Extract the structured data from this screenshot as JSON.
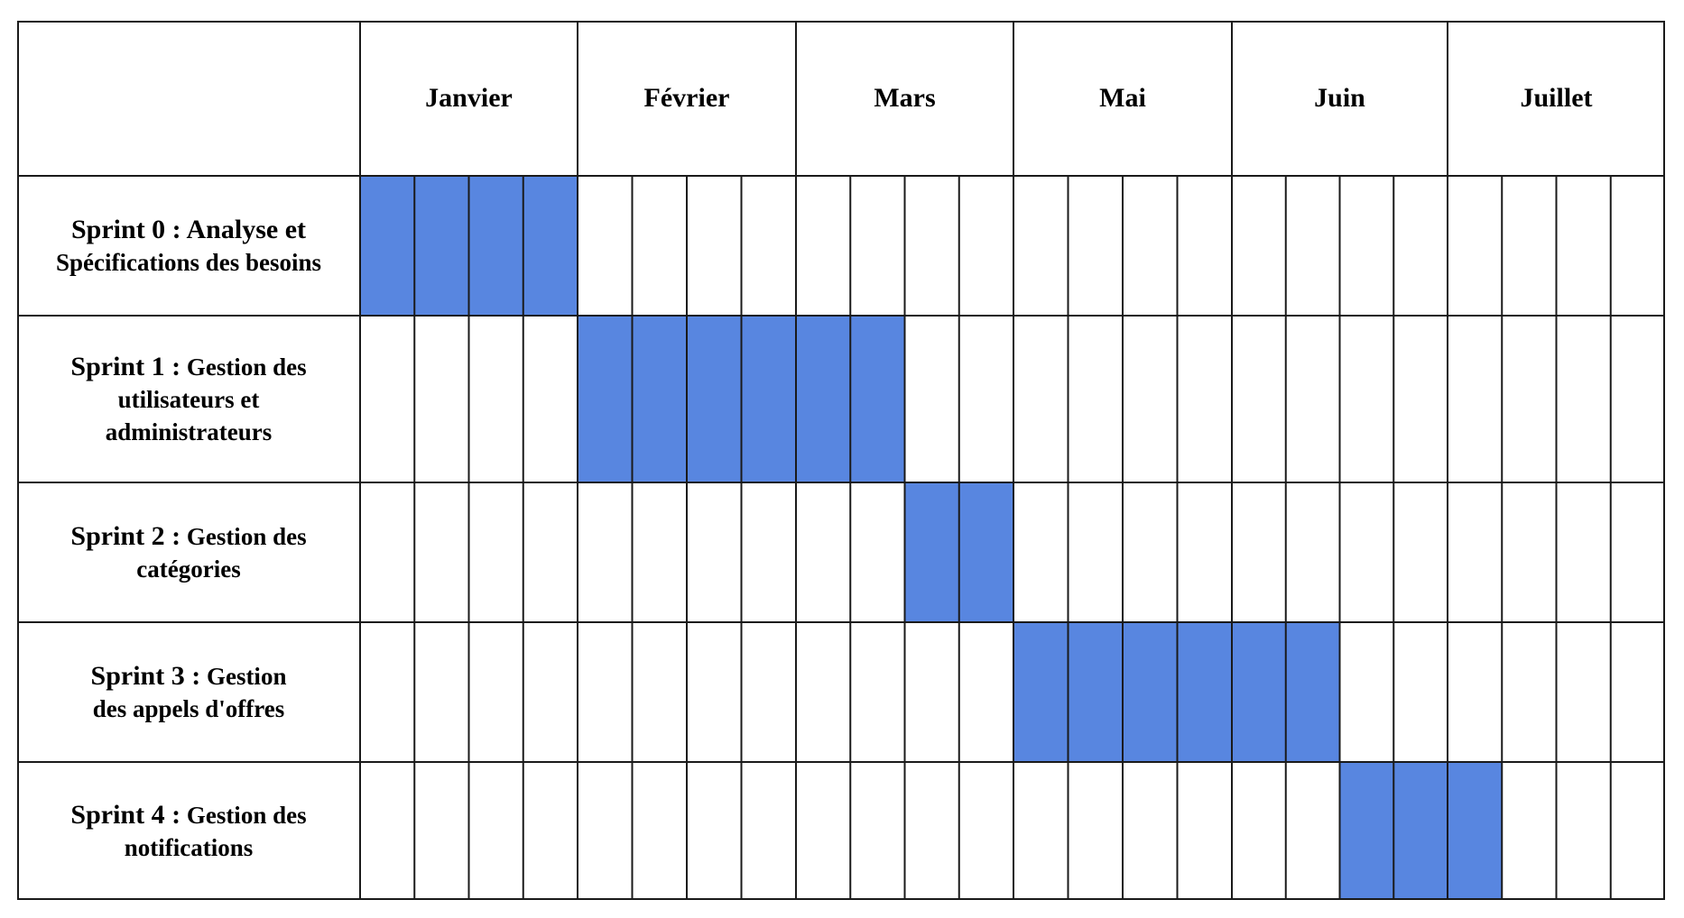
{
  "months": [
    "Janvier",
    "Février",
    "Mars",
    "Mai",
    "Juin",
    "Juillet"
  ],
  "weeks_per_month": 4,
  "bar_color": "#5886e0",
  "sprints": [
    {
      "id": "Sprint 0 : Analyse et",
      "lines": [
        "Spécifications des besoins"
      ],
      "start_week": 0,
      "end_week": 3
    },
    {
      "id": "Sprint 1 :",
      "lines_first_rest": "Gestion des",
      "lines": [
        "utilisateurs et",
        "administrateurs"
      ],
      "start_week": 4,
      "end_week": 9
    },
    {
      "id": "Sprint 2 :",
      "lines_first_rest": "Gestion des",
      "lines": [
        "catégories"
      ],
      "start_week": 10,
      "end_week": 11
    },
    {
      "id": "Sprint 3 :",
      "lines_first_rest": "Gestion",
      "lines": [
        "des appels d'offres"
      ],
      "start_week": 12,
      "end_week": 17
    },
    {
      "id": "Sprint 4 :",
      "lines_first_rest": "Gestion des",
      "lines": [
        "notifications"
      ],
      "start_week": 18,
      "end_week": 20
    }
  ]
}
